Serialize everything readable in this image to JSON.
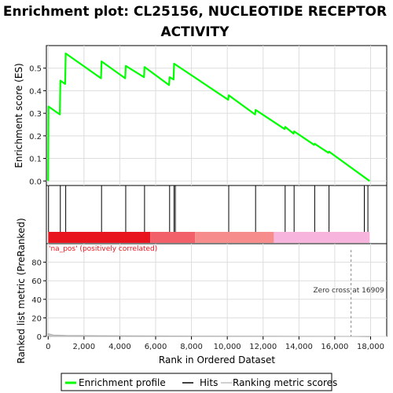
{
  "chart_data": {
    "type": "line",
    "title_lines": [
      "Enrichment plot: CL25156, NUCLEOTIDE RECEPTOR",
      "ACTIVITY"
    ],
    "top_panel": {
      "ylabel": "Enrichment score (ES)",
      "ylim": [
        -0.02,
        0.6
      ],
      "yticks": [
        "0.0",
        "0.1",
        "0.2",
        "0.3",
        "0.4",
        "0.5"
      ],
      "ytick_values": [
        0.0,
        0.1,
        0.2,
        0.3,
        0.4,
        0.5
      ],
      "series": [
        {
          "name": "Enrichment profile",
          "color": "#00ff00",
          "x": [
            0,
            20,
            650,
            680,
            950,
            980,
            2950,
            2980,
            4300,
            4330,
            5350,
            5380,
            6750,
            6780,
            7000,
            7030,
            10050,
            10080,
            11550,
            11580,
            13200,
            13230,
            13700,
            13730,
            14850,
            14880,
            15650,
            15680,
            17950
          ],
          "y": [
            0.0,
            0.33,
            0.295,
            0.445,
            0.43,
            0.565,
            0.455,
            0.53,
            0.455,
            0.51,
            0.46,
            0.505,
            0.425,
            0.46,
            0.45,
            0.52,
            0.36,
            0.38,
            0.295,
            0.315,
            0.23,
            0.24,
            0.21,
            0.22,
            0.16,
            0.165,
            0.125,
            0.13,
            0.0
          ]
        }
      ]
    },
    "hits_panel": {
      "hit_positions": [
        20,
        680,
        980,
        2980,
        4330,
        5380,
        6780,
        7030,
        7100,
        10080,
        11580,
        13230,
        13730,
        14880,
        15680,
        17650,
        17850
      ],
      "color_bands": [
        {
          "from": 0,
          "to": 5700,
          "color": "#e8141e"
        },
        {
          "from": 5700,
          "to": 8200,
          "color": "#f2606a"
        },
        {
          "from": 8200,
          "to": 12600,
          "color": "#f78c8c"
        },
        {
          "from": 12600,
          "to": 17950,
          "color": "#f7b4dc"
        }
      ]
    },
    "bottom_panel": {
      "ylabel": "Ranked list metric (PreRanked)",
      "ylim": [
        0,
        100
      ],
      "yticks": [
        "0",
        "20",
        "40",
        "60",
        "80"
      ],
      "ytick_values": [
        0,
        20,
        40,
        60,
        80
      ],
      "zero_cross_x": 16909,
      "zero_cross_label": "Zero cross at 16909",
      "positive_label": "'na_pos' (positively correlated)",
      "metric_x": [
        0,
        300,
        1000,
        3000,
        5700,
        8000,
        12600,
        16909,
        17950
      ],
      "metric_y": [
        3.0,
        1.5,
        1.0,
        0.8,
        0.5,
        0.3,
        0.15,
        0.0,
        -0.3
      ]
    },
    "xlabel": "Rank in Ordered Dataset",
    "xlim": [
      -100,
      18900
    ],
    "xticks": [
      "0",
      "2,000",
      "4,000",
      "6,000",
      "8,000",
      "10,000",
      "12,000",
      "14,000",
      "16,000",
      "18,000"
    ],
    "xtick_values": [
      0,
      2000,
      4000,
      6000,
      8000,
      10000,
      12000,
      14000,
      16000,
      18000
    ],
    "legend": [
      {
        "label": "Enrichment profile",
        "color": "#00ff00"
      },
      {
        "label": "Hits",
        "color": "#000000"
      },
      {
        "label": "Ranking metric scores",
        "color": "#c0c0c0"
      }
    ]
  }
}
